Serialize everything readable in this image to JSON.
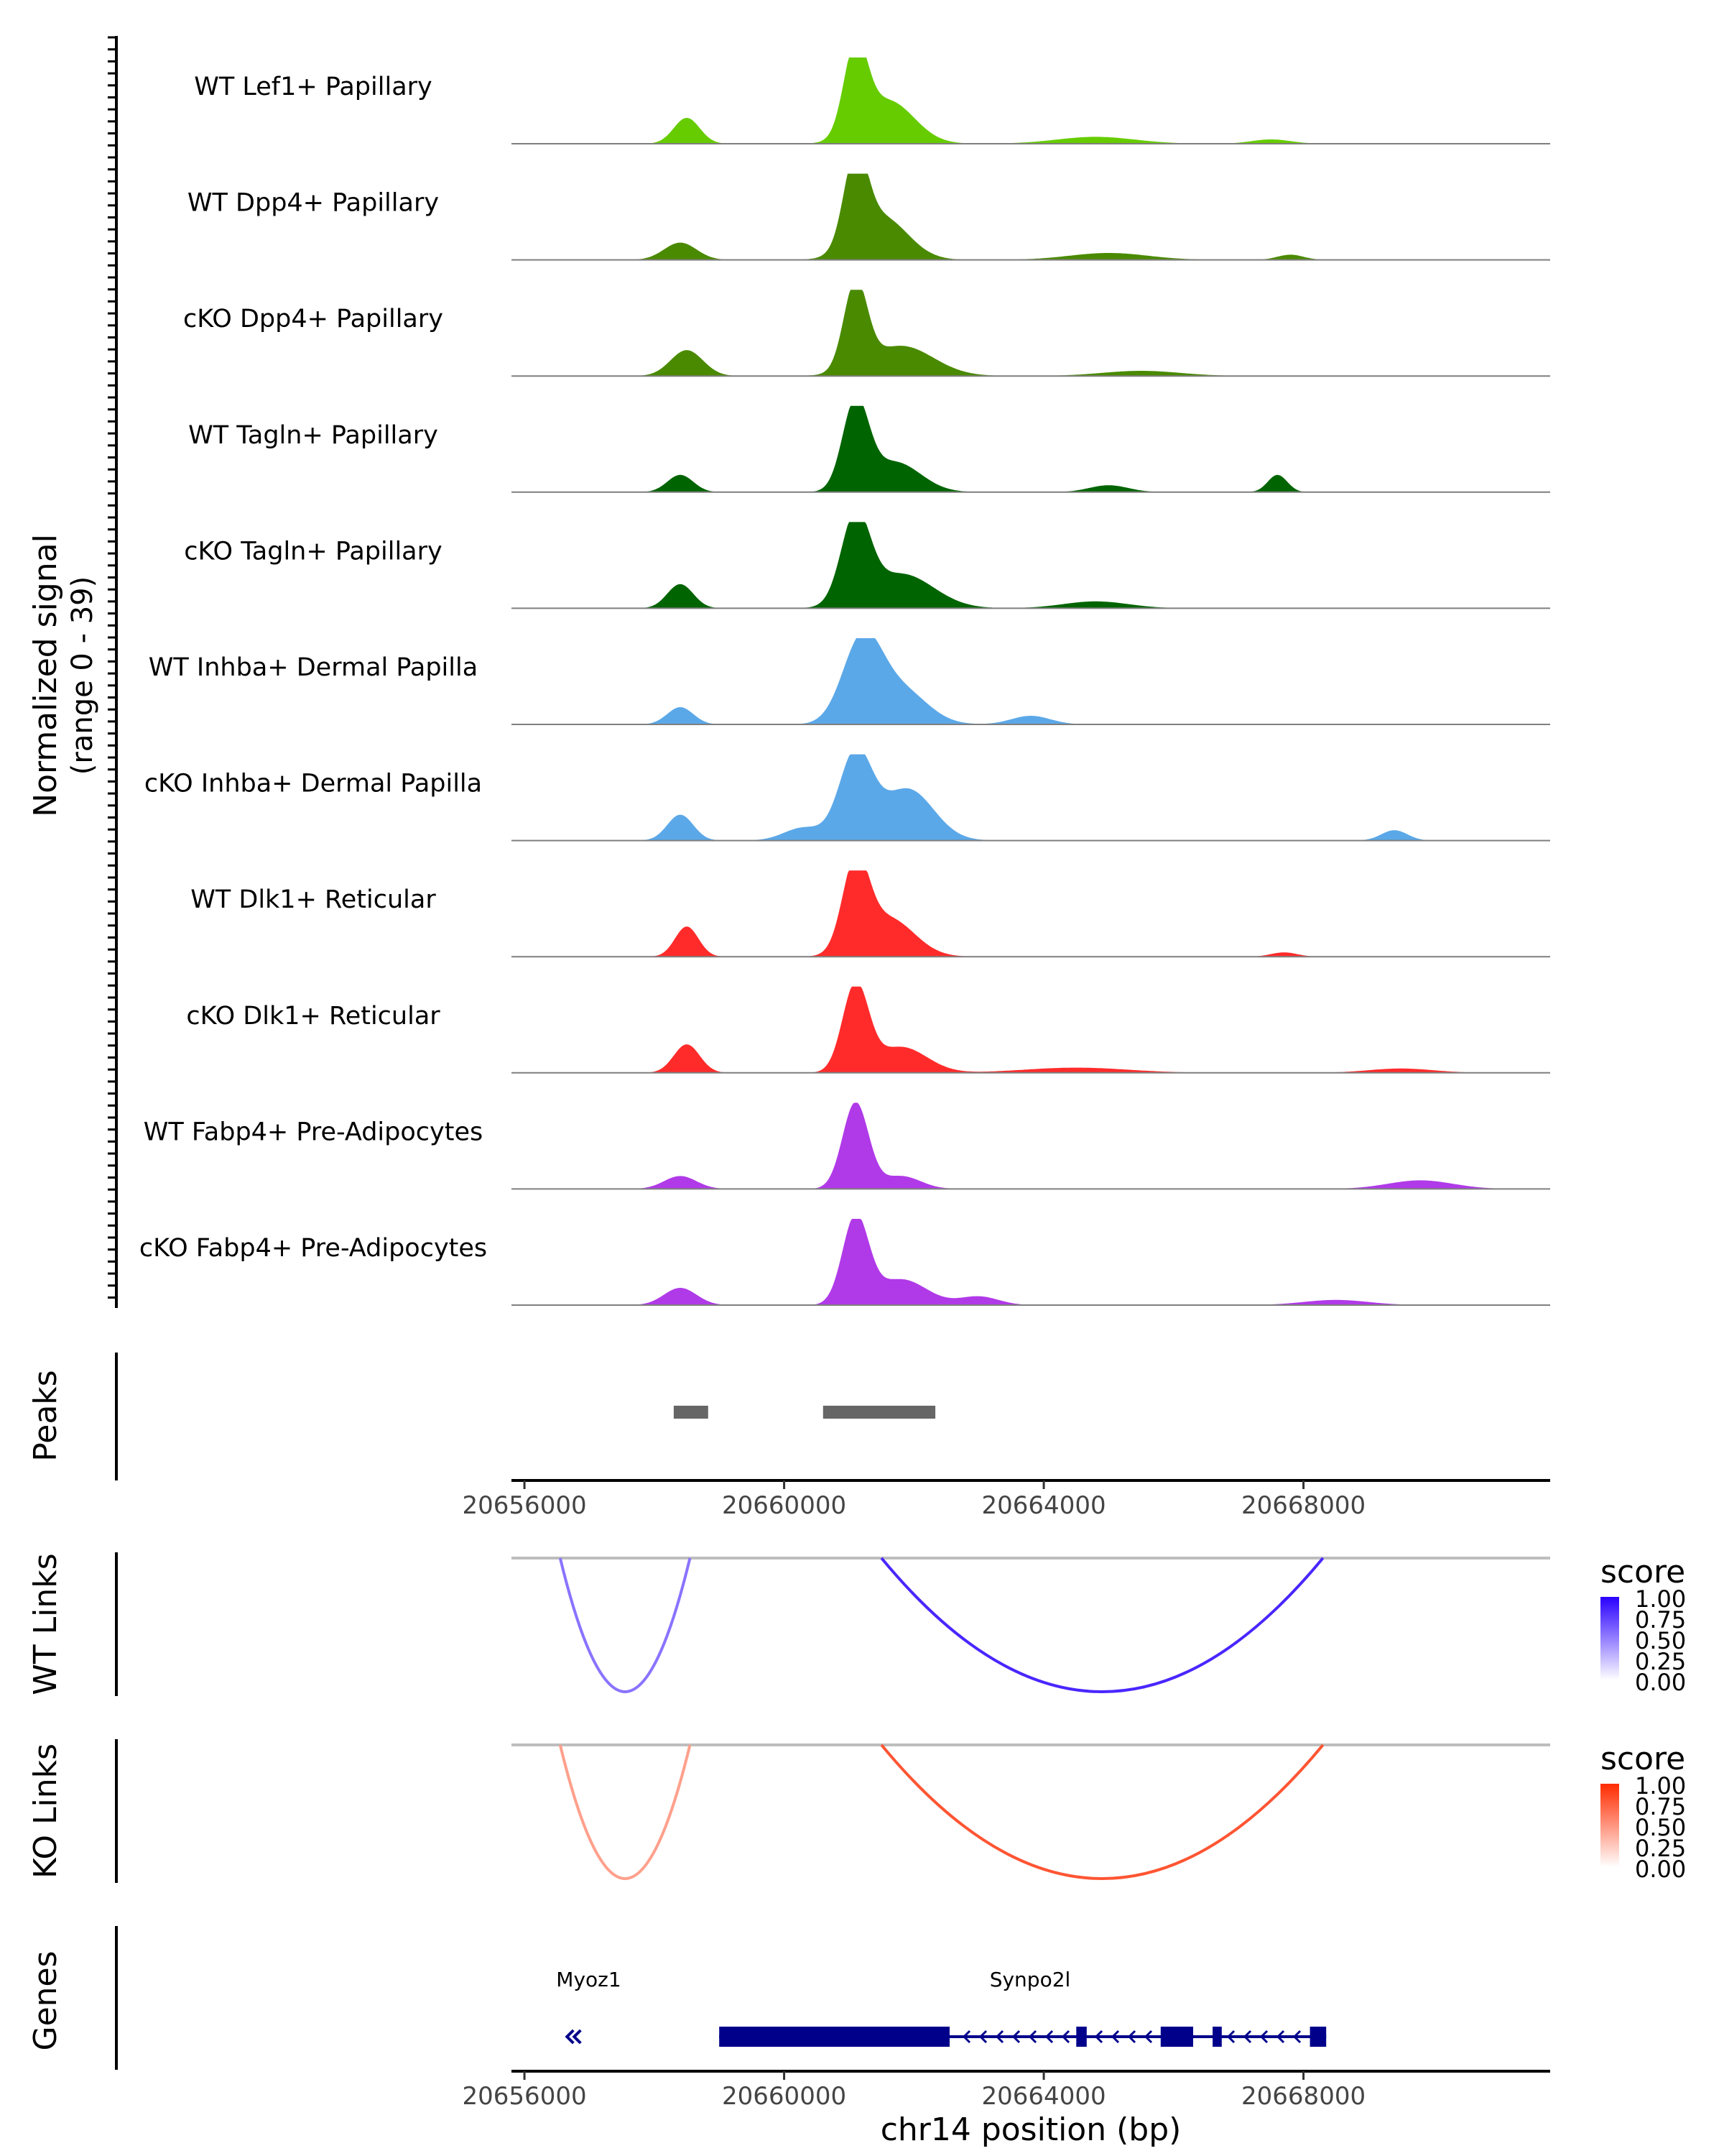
{
  "chart_data": {
    "type": "area",
    "title": "",
    "y_axis_label": "Normalized signal",
    "y_axis_range_label": "(range 0 - 39)",
    "y_range": [
      0,
      39
    ],
    "x_axis_label": "chr14 position (bp)",
    "x_range": [
      20655800,
      20671800
    ],
    "x_ticks": [
      20656000,
      20660000,
      20664000,
      20668000
    ],
    "x_tick_labels": [
      "20656000",
      "20660000",
      "20664000",
      "20668000"
    ],
    "tracks": [
      {
        "name": "WT Lef1+ Papillary",
        "color": "#66cc00",
        "peaks": [
          [
            20658500,
            0.3,
            200
          ],
          [
            20661100,
            1.0,
            180
          ],
          [
            20661600,
            0.5,
            400
          ],
          [
            20664800,
            0.08,
            600
          ],
          [
            20667500,
            0.05,
            300
          ]
        ]
      },
      {
        "name": "WT Dpp4+ Papillary",
        "color": "#4a8a00",
        "peaks": [
          [
            20658400,
            0.2,
            250
          ],
          [
            20661100,
            1.0,
            180
          ],
          [
            20661500,
            0.5,
            400
          ],
          [
            20665000,
            0.08,
            600
          ],
          [
            20667800,
            0.06,
            200
          ]
        ]
      },
      {
        "name": "cKO Dpp4+ Papillary",
        "color": "#4a8a00",
        "peaks": [
          [
            20658500,
            0.3,
            250
          ],
          [
            20661100,
            1.0,
            180
          ],
          [
            20661800,
            0.35,
            500
          ],
          [
            20665500,
            0.06,
            600
          ]
        ]
      },
      {
        "name": "WT Tagln+ Papillary",
        "color": "#006400",
        "peaks": [
          [
            20658400,
            0.2,
            200
          ],
          [
            20661100,
            1.0,
            200
          ],
          [
            20661700,
            0.35,
            400
          ],
          [
            20667600,
            0.2,
            150
          ],
          [
            20665000,
            0.08,
            300
          ]
        ]
      },
      {
        "name": "cKO Tagln+ Papillary",
        "color": "#006400",
        "peaks": [
          [
            20658400,
            0.28,
            200
          ],
          [
            20661100,
            1.0,
            220
          ],
          [
            20661800,
            0.4,
            500
          ],
          [
            20664800,
            0.08,
            500
          ]
        ]
      },
      {
        "name": "WT Inhba+ Dermal Papilla",
        "color": "#5ba8e8",
        "peaks": [
          [
            20658400,
            0.2,
            200
          ],
          [
            20661200,
            0.95,
            300
          ],
          [
            20661800,
            0.4,
            400
          ],
          [
            20663800,
            0.1,
            300
          ]
        ]
      },
      {
        "name": "cKO Inhba+ Dermal Papilla",
        "color": "#5ba8e8",
        "peaks": [
          [
            20658400,
            0.3,
            200
          ],
          [
            20661100,
            1.0,
            250
          ],
          [
            20661900,
            0.6,
            400
          ],
          [
            20660300,
            0.15,
            300
          ],
          [
            20669400,
            0.12,
            200
          ]
        ]
      },
      {
        "name": "WT Dlk1+ Reticular",
        "color": "#ff2b2b",
        "peaks": [
          [
            20658500,
            0.35,
            180
          ],
          [
            20661100,
            1.0,
            200
          ],
          [
            20661600,
            0.45,
            400
          ],
          [
            20667700,
            0.05,
            200
          ]
        ]
      },
      {
        "name": "cKO Dlk1+ Reticular",
        "color": "#ff2b2b",
        "peaks": [
          [
            20658500,
            0.33,
            200
          ],
          [
            20661100,
            1.0,
            200
          ],
          [
            20661800,
            0.3,
            400
          ],
          [
            20664500,
            0.06,
            800
          ],
          [
            20669500,
            0.05,
            500
          ]
        ]
      },
      {
        "name": "WT Fabp4+ Pre-Adipocytes",
        "color": "#b03ae8",
        "peaks": [
          [
            20658400,
            0.15,
            250
          ],
          [
            20661100,
            1.0,
            200
          ],
          [
            20661800,
            0.15,
            300
          ],
          [
            20669800,
            0.1,
            500
          ]
        ]
      },
      {
        "name": "cKO Fabp4+ Pre-Adipocytes",
        "color": "#b03ae8",
        "peaks": [
          [
            20658400,
            0.2,
            250
          ],
          [
            20661100,
            1.0,
            200
          ],
          [
            20661800,
            0.3,
            400
          ],
          [
            20663000,
            0.1,
            300
          ],
          [
            20668500,
            0.06,
            500
          ]
        ]
      }
    ],
    "peaks_track": {
      "label": "Peaks",
      "regions": [
        [
          20658300,
          20658830
        ],
        [
          20660600,
          20662330
        ]
      ],
      "color": "#666666"
    },
    "links_tracks": [
      {
        "label": "WT Links",
        "links": [
          [
            20656550,
            20658550,
            0.55
          ],
          [
            20661500,
            20668300,
            0.85
          ]
        ],
        "legend_title": "score",
        "legend_ticks": [
          "1.00",
          "0.75",
          "0.50",
          "0.25",
          "0.00"
        ],
        "high_color": "#2a00ff",
        "low_color": "#ffffff"
      },
      {
        "label": "KO Links",
        "links": [
          [
            20656550,
            20658550,
            0.45
          ],
          [
            20661500,
            20668300,
            0.8
          ]
        ],
        "legend_title": "score",
        "legend_ticks": [
          "1.00",
          "0.75",
          "0.50",
          "0.25",
          "0.00"
        ],
        "high_color": "#ff2b00",
        "low_color": "#ffffff"
      }
    ],
    "genes_track": {
      "label": "Genes",
      "color": "#00008b",
      "genes": [
        {
          "name": "Myoz1",
          "strand": "-",
          "start": 20656600,
          "end": 20656780,
          "exons": []
        },
        {
          "name": "Synpo2l",
          "strand": "-",
          "start": 20659000,
          "end": 20668350,
          "exons": [
            [
              20659000,
              20662550
            ],
            [
              20664500,
              20664660
            ],
            [
              20665800,
              20666300
            ],
            [
              20666600,
              20666740
            ],
            [
              20668100,
              20668350
            ]
          ]
        }
      ]
    }
  }
}
